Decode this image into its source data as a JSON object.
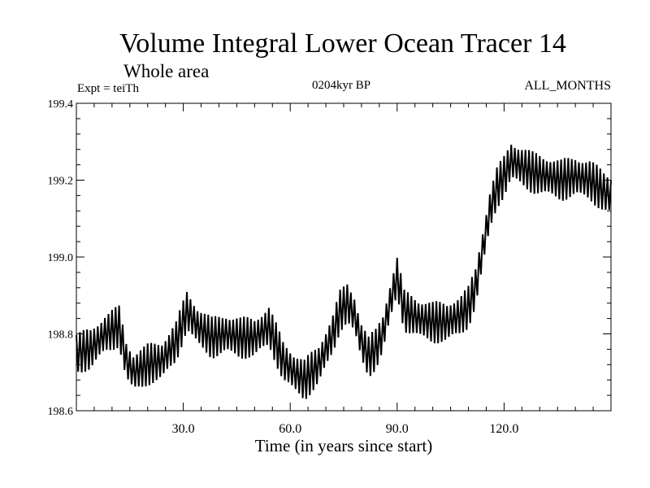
{
  "chart_data": {
    "type": "line",
    "title": "Volume Integral Lower Ocean Tracer 14",
    "subtitle": "Whole area",
    "expt_label": "Expt = teiTh",
    "period_label": "0204kyr BP",
    "months_label": "ALL_MONTHS",
    "xlabel": "Time (in years since start)",
    "ylabel": "",
    "xlim": [
      0,
      150
    ],
    "ylim": [
      198.6,
      199.4
    ],
    "x_ticks": [
      30,
      60,
      90,
      120
    ],
    "x_tick_labels": [
      "30.0",
      "60.0",
      "90.0",
      "120.0"
    ],
    "y_ticks": [
      198.6,
      198.8,
      199.0,
      199.2,
      199.4
    ],
    "y_tick_labels": [
      "198.6",
      "198.8",
      "199.0",
      "199.2",
      "199.4"
    ],
    "series": [
      {
        "name": "Volume Integral Lower Ocean Tracer 14",
        "color": "#000000",
        "oscillation_amplitude": 0.055,
        "samples_per_year": 2,
        "trend": {
          "x": [
            0,
            4,
            8,
            12,
            14,
            16,
            20,
            24,
            28,
            31,
            34,
            38,
            42,
            46,
            50,
            54,
            58,
            61,
            64,
            68,
            72,
            74,
            76,
            78,
            80,
            82,
            84,
            86,
            88,
            90,
            92,
            96,
            100,
            104,
            108,
            110,
            112,
            114,
            116,
            118,
            120,
            122,
            124,
            128,
            132,
            136,
            140,
            144,
            148,
            150
          ],
          "y": [
            198.75,
            198.76,
            198.8,
            198.82,
            198.73,
            198.7,
            198.72,
            198.73,
            198.78,
            198.86,
            198.82,
            198.79,
            198.8,
            198.79,
            198.79,
            198.82,
            198.73,
            198.7,
            198.68,
            198.72,
            198.8,
            198.86,
            198.88,
            198.85,
            198.78,
            198.74,
            198.76,
            198.8,
            198.88,
            198.95,
            198.86,
            198.84,
            198.83,
            198.83,
            198.85,
            198.87,
            198.92,
            199.02,
            199.12,
            199.18,
            199.21,
            199.25,
            199.24,
            199.22,
            199.21,
            199.2,
            199.21,
            199.2,
            199.17,
            199.16
          ]
        }
      }
    ]
  }
}
